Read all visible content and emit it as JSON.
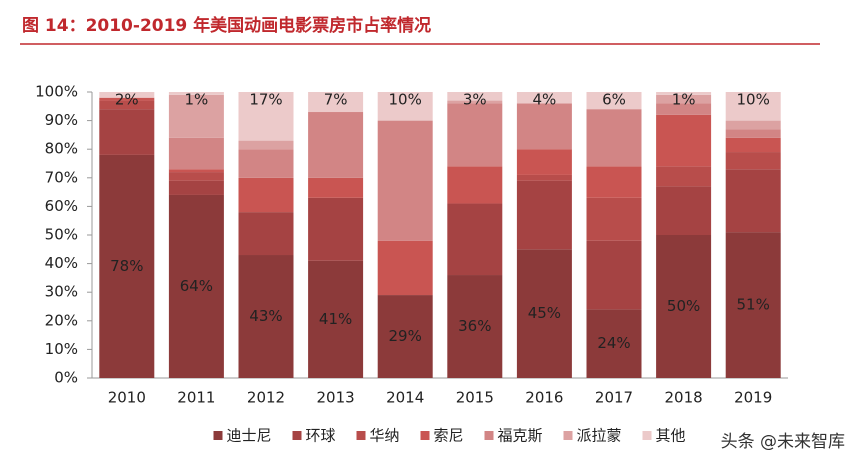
{
  "chart_data": {
    "type": "stacked_bar",
    "title": "图 14：2010-2019 年美国动画电影票房市占率情况",
    "watermark": "头条 @未来智库",
    "categories": [
      "2010",
      "2011",
      "2012",
      "2013",
      "2014",
      "2015",
      "2016",
      "2017",
      "2018",
      "2019"
    ],
    "series": [
      {
        "name": "迪士尼",
        "color": "#8c3a3a",
        "values": [
          78,
          64,
          43,
          41,
          29,
          36,
          45,
          24,
          50,
          51
        ],
        "value_labels": [
          "78%",
          "64%",
          "43%",
          "41%",
          "29%",
          "36%",
          "45%",
          "24%",
          "50%",
          "51%"
        ]
      },
      {
        "name": "环球",
        "color": "#a54343",
        "values": [
          16,
          5,
          15,
          22,
          0,
          25,
          24,
          24,
          17,
          22
        ]
      },
      {
        "name": "华纳",
        "color": "#b84d4b",
        "values": [
          3,
          3,
          0,
          0,
          0,
          0,
          2,
          15,
          7,
          6
        ]
      },
      {
        "name": "索尼",
        "color": "#c95552",
        "values": [
          1,
          1,
          12,
          7,
          19,
          13,
          9,
          11,
          18,
          5
        ]
      },
      {
        "name": "福克斯",
        "color": "#d28585",
        "values": [
          0,
          11,
          10,
          23,
          42,
          22,
          16,
          20,
          4,
          3
        ]
      },
      {
        "name": "派拉蒙",
        "color": "#dca2a2",
        "values": [
          0,
          15,
          3,
          0,
          0,
          1,
          0,
          0,
          3,
          3
        ]
      },
      {
        "name": "其他",
        "color": "#eccaca",
        "values": [
          2,
          1,
          17,
          7,
          10,
          3,
          4,
          6,
          1,
          10
        ],
        "value_labels": [
          "2%",
          "1%",
          "17%",
          "7%",
          "10%",
          "3%",
          "4%",
          "6%",
          "1%",
          "10%"
        ]
      }
    ],
    "ylim": [
      0,
      100
    ],
    "yticks": [
      {
        "value": 0,
        "label": "0%"
      },
      {
        "value": 10,
        "label": "10%"
      },
      {
        "value": 20,
        "label": "20%"
      },
      {
        "value": 30,
        "label": "30%"
      },
      {
        "value": 40,
        "label": "40%"
      },
      {
        "value": 50,
        "label": "50%"
      },
      {
        "value": 60,
        "label": "60%"
      },
      {
        "value": 70,
        "label": "70%"
      },
      {
        "value": 80,
        "label": "80%"
      },
      {
        "value": 90,
        "label": "90%"
      },
      {
        "value": 100,
        "label": "100%"
      }
    ]
  }
}
